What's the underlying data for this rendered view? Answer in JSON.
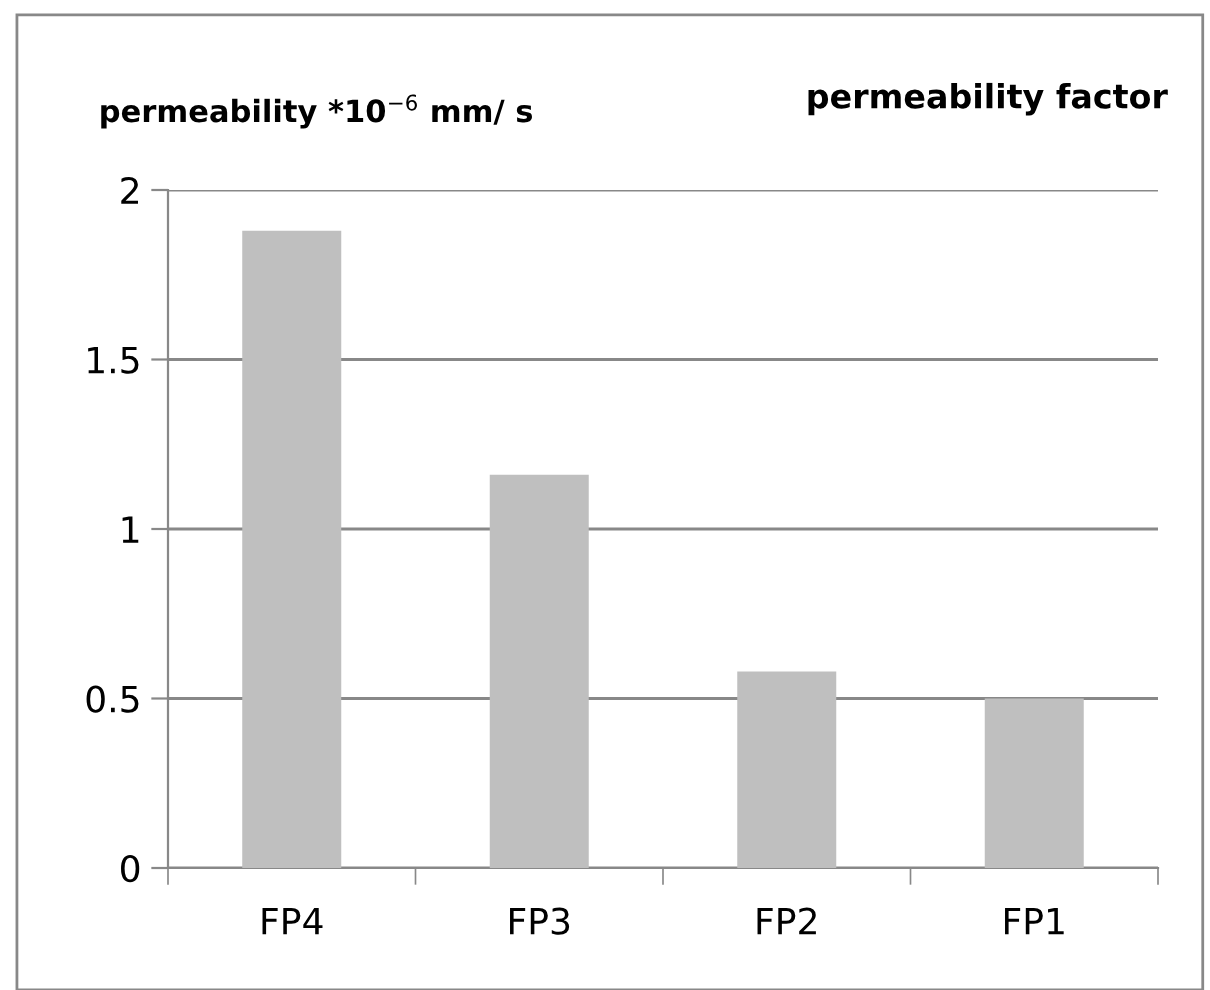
{
  "chart_data": {
    "type": "bar",
    "title": "permeability factor",
    "ylabel": "permeability *10$^{−6}$ mm/ s",
    "categories": [
      "FP4",
      "FP3",
      "FP2",
      "FP1"
    ],
    "values": [
      1.88,
      1.16,
      0.58,
      0.5
    ],
    "color": "#bfbfbf",
    "ylim": [
      0,
      2
    ],
    "yticks": [
      0,
      0.5,
      1,
      1.5,
      2
    ],
    "grid": "y"
  }
}
